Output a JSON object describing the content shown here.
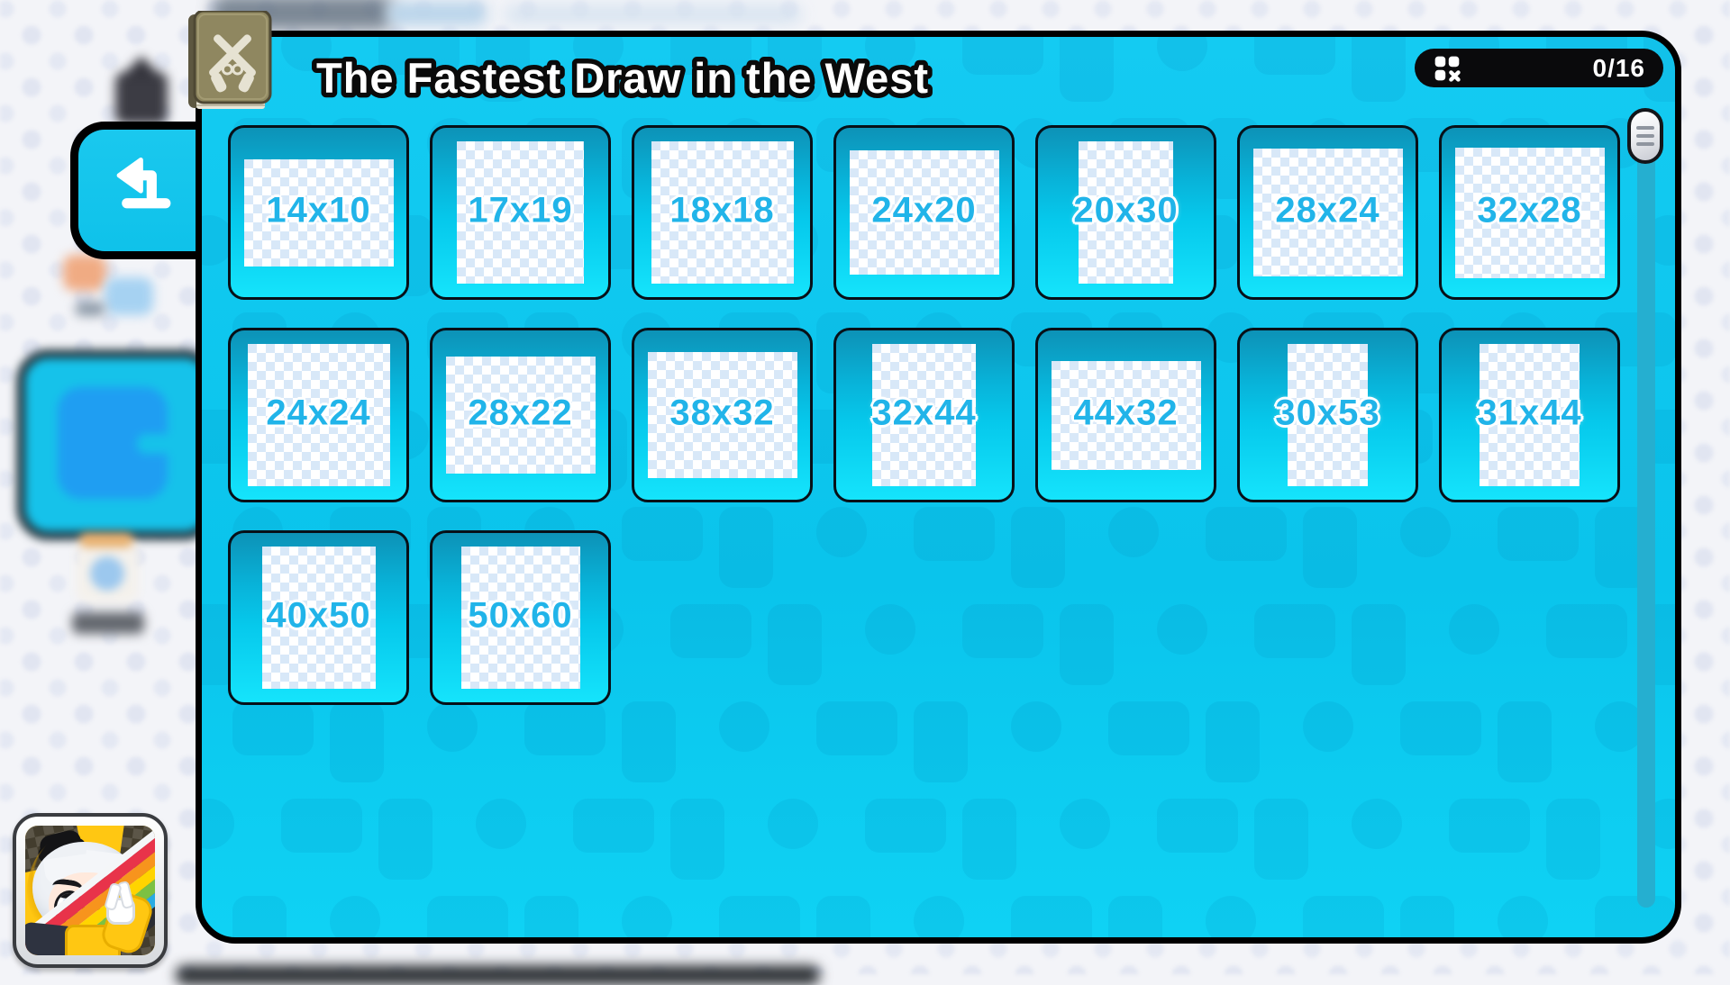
{
  "panel": {
    "title": "The Fastest Draw in the West",
    "counter": {
      "value": "0/16"
    },
    "tiles": [
      "14x10",
      "17x19",
      "18x18",
      "24x20",
      "20x30",
      "28x24",
      "32x28",
      "24x24",
      "28x22",
      "38x32",
      "32x44",
      "44x32",
      "30x53",
      "31x44",
      "40x50",
      "50x60"
    ]
  },
  "icons": {
    "pack_icon": "book-with-crossed-pistols",
    "counter_icon": "puzzle-squares-with-x",
    "back_icon": "return-arrow",
    "scrollbar_thumb_icon": "grip-lines"
  },
  "colors": {
    "panel_cyan": "#0cc6ee",
    "tile_gradient_top": "#0d92b7",
    "tile_gradient_bottom": "#15e4fc",
    "tile_label": "#21b4e9",
    "counter_bg": "#0a0a0c",
    "title_text": "#ffffff",
    "title_outline": "#0a0a0a"
  }
}
